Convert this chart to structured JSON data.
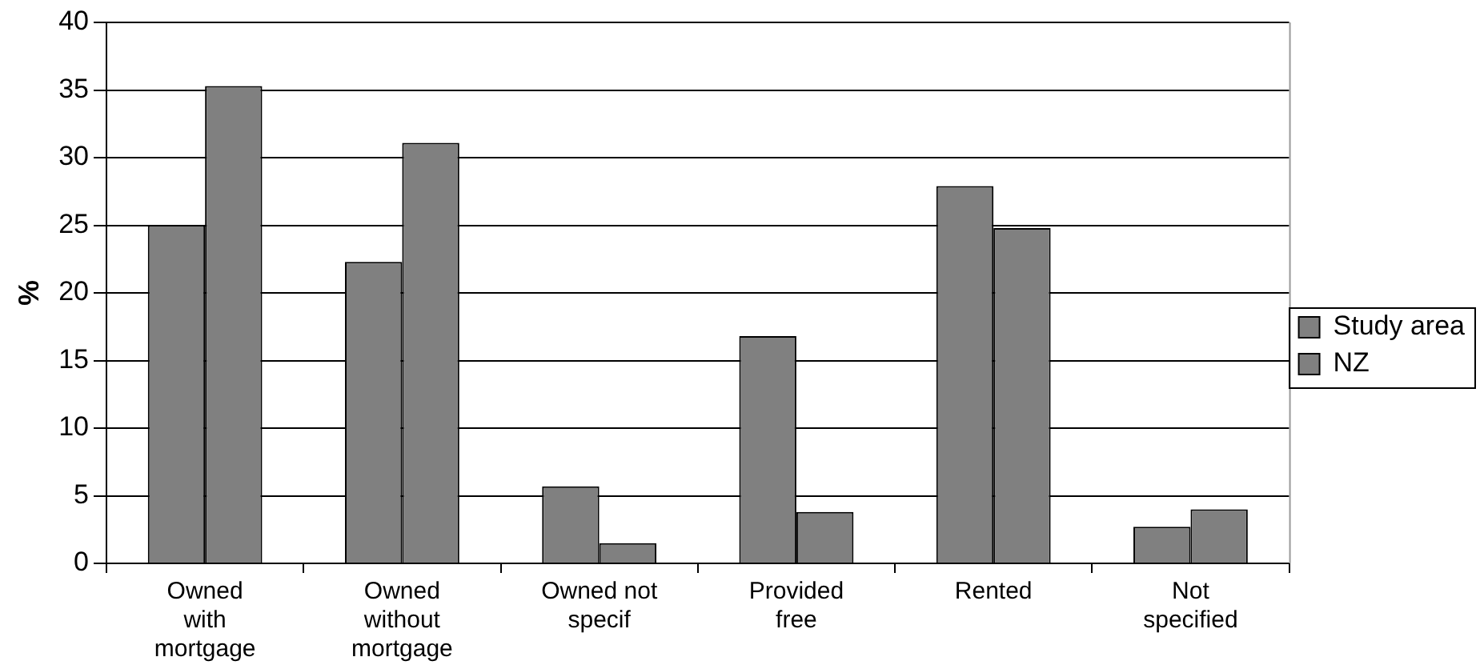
{
  "chart_data": {
    "type": "bar",
    "ylabel": "%",
    "categories": [
      "Owned with mortgage",
      "Owned without mortgage",
      "Owned not specif",
      "Provided free",
      "Rented",
      "Not specified"
    ],
    "series": [
      {
        "name": "Study area",
        "color": "#808080",
        "values": [
          25,
          22.3,
          5.7,
          16.8,
          27.9,
          2.7
        ]
      },
      {
        "name": "NZ",
        "color": "#808080",
        "values": [
          35.3,
          31.1,
          1.5,
          3.8,
          24.8,
          4.0
        ]
      }
    ],
    "ylim": [
      0,
      40
    ],
    "yticks": [
      0,
      5,
      10,
      15,
      20,
      25,
      30,
      35,
      40
    ],
    "grid": "y",
    "legend": "right"
  }
}
